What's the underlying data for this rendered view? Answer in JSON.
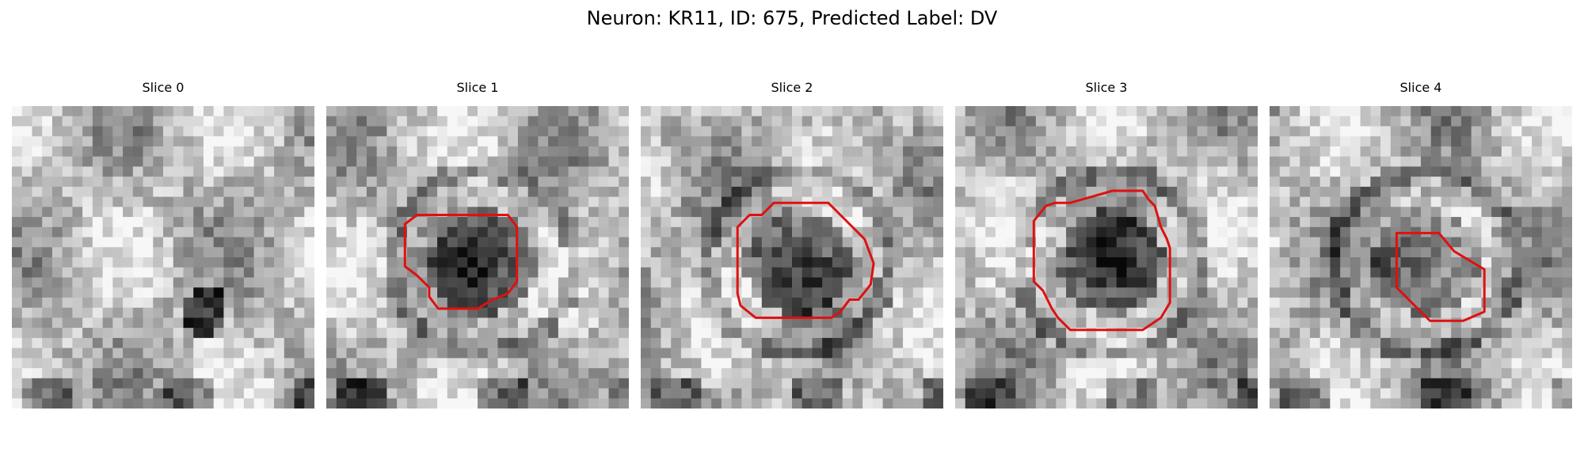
{
  "figure": {
    "title": "Neuron: KR11, ID: 675, Predicted Label: DV",
    "grid_size": 30,
    "contour_color": "#e01010",
    "colormap": "gray"
  },
  "panels": [
    {
      "title": "Slice 0",
      "has_contour": false,
      "seed": 11,
      "dark_center": false
    },
    {
      "title": "Slice 1",
      "has_contour": true,
      "seed": 23,
      "dark_center": true
    },
    {
      "title": "Slice 2",
      "has_contour": true,
      "seed": 37,
      "dark_center": true
    },
    {
      "title": "Slice 3",
      "has_contour": true,
      "seed": 41,
      "dark_center": true
    },
    {
      "title": "Slice 4",
      "has_contour": true,
      "seed": 53,
      "dark_center": true
    }
  ]
}
